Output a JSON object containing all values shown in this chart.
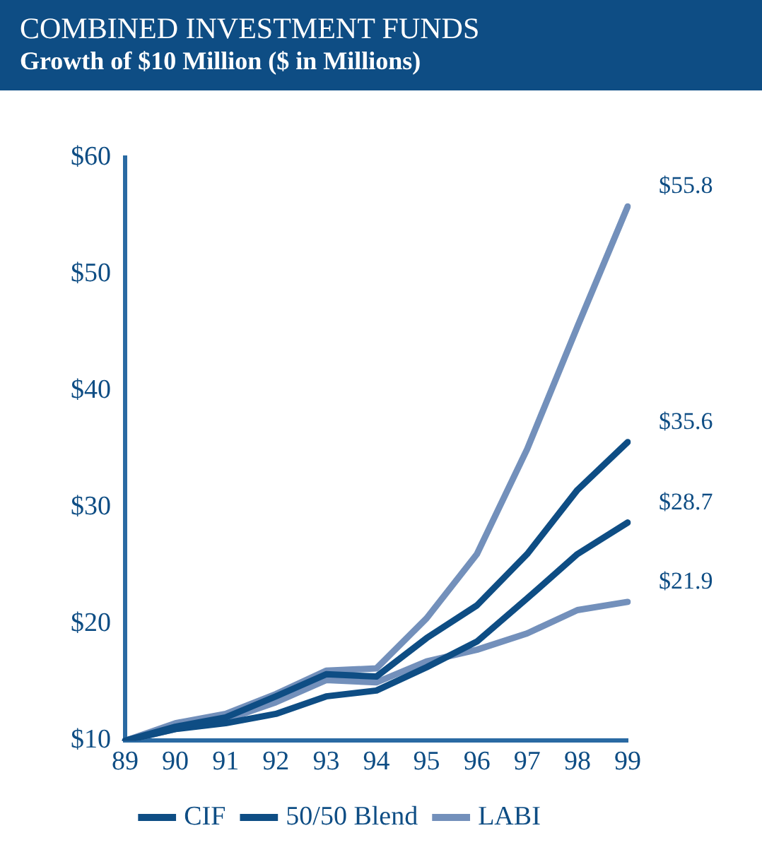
{
  "chart_data": {
    "type": "line",
    "title": "COMBINED INVESTMENT FUNDS",
    "subtitle": "Growth of $10 Million ($ in Millions)",
    "categories": [
      "89",
      "90",
      "91",
      "92",
      "93",
      "94",
      "95",
      "96",
      "97",
      "98",
      "99"
    ],
    "series": [
      {
        "name": "CIF",
        "color": "#0e4d84",
        "values": [
          10,
          11.2,
          12,
          13.8,
          15.7,
          15.5,
          18.8,
          21.6,
          26,
          31.5,
          35.6
        ]
      },
      {
        "name": "50/50 Blend",
        "color": "#0e4d84",
        "values": [
          10,
          11,
          11.5,
          12.3,
          13.8,
          14.3,
          16.3,
          18.5,
          22.2,
          26,
          28.7
        ]
      },
      {
        "color": "#7390bb",
        "values": [
          10,
          11.5,
          12.3,
          14,
          16,
          16.2,
          20.5,
          26,
          35,
          45.5,
          55.8
        ]
      },
      {
        "name": "LABI",
        "color": "#7390bb",
        "values": [
          10,
          11,
          11.8,
          13.3,
          15.2,
          15,
          16.8,
          17.8,
          19.2,
          21.2,
          21.9
        ]
      }
    ],
    "ylim": [
      10,
      60
    ],
    "yticks": [
      {
        "value": 10,
        "label": "$10"
      },
      {
        "value": 20,
        "label": "$20"
      },
      {
        "value": 30,
        "label": "$30"
      },
      {
        "value": 40,
        "label": "$40"
      },
      {
        "value": 50,
        "label": "$50"
      },
      {
        "value": 60,
        "label": "$60"
      }
    ],
    "annotations": [
      {
        "text": "$55.8",
        "x": "99",
        "y": 55.8
      },
      {
        "text": "$35.6",
        "x": "99",
        "y": 35.6
      },
      {
        "text": "$28.7",
        "x": "99",
        "y": 28.7
      },
      {
        "text": "$21.9",
        "x": "99",
        "y": 21.9
      }
    ],
    "grid": false,
    "legend": "bottom",
    "marker": "none",
    "line_style": "solid"
  }
}
